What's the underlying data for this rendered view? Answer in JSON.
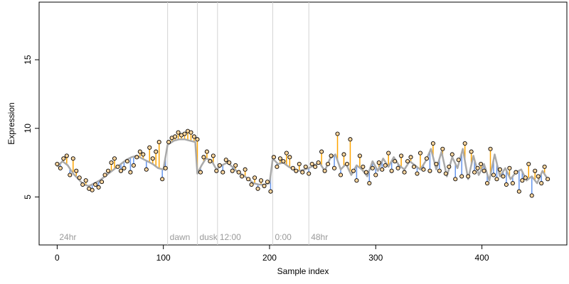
{
  "chart_data": {
    "type": "scatter",
    "title": "",
    "xlabel": "Sample index",
    "ylabel": "Expression",
    "xlim": [
      -17,
      480
    ],
    "ylim": [
      1.5,
      19.2
    ],
    "x_ticks": [
      0,
      100,
      200,
      300,
      400
    ],
    "y_ticks": [
      5,
      10,
      15
    ],
    "grid": false,
    "legend": "none",
    "colors": {
      "fit_line": "#a9a9a9",
      "above_segment": "#ffa500",
      "below_segment": "#6495ed",
      "point_fill": "#ffd7a0",
      "point_stroke": "#000000",
      "phase_line": "#d3d3d3"
    },
    "phase_markers": [
      {
        "x": 0,
        "label": "24hr"
      },
      {
        "x": 104,
        "label": "dawn"
      },
      {
        "x": 132,
        "label": "dusk"
      },
      {
        "x": 151,
        "label": "12:00"
      },
      {
        "x": 203,
        "label": "0:00"
      },
      {
        "x": 237,
        "label": "48hr"
      }
    ],
    "fit_line": {
      "x": [
        0,
        5,
        10,
        15,
        20,
        25,
        30,
        35,
        40,
        45,
        50,
        55,
        60,
        65,
        70,
        75,
        80,
        85,
        90,
        95,
        100,
        104,
        110,
        115,
        120,
        125,
        130,
        132,
        136,
        140,
        145,
        150,
        155,
        160,
        165,
        170,
        175,
        180,
        185,
        190,
        195,
        200,
        203,
        208,
        213,
        218,
        223,
        228,
        233,
        237,
        242,
        247,
        252,
        257,
        262,
        267,
        272,
        277,
        282,
        287,
        292,
        297,
        302,
        307,
        312,
        317,
        322,
        327,
        332,
        337,
        342,
        347,
        352,
        357,
        362,
        367,
        372,
        377,
        382,
        387,
        392,
        397,
        402,
        407,
        412,
        417,
        422,
        427,
        432,
        437,
        442,
        447,
        452,
        457,
        462
      ],
      "y": [
        7.2,
        7.6,
        7.3,
        6.7,
        6.3,
        5.9,
        5.8,
        6.0,
        6.2,
        6.5,
        6.8,
        7.1,
        7.4,
        7.7,
        7.9,
        8.0,
        7.8,
        7.6,
        7.4,
        7.1,
        7.0,
        8.8,
        9.1,
        9.2,
        9.2,
        9.1,
        9.0,
        6.7,
        7.3,
        7.8,
        7.7,
        7.0,
        7.3,
        7.5,
        7.2,
        6.8,
        6.6,
        6.3,
        6.0,
        5.9,
        5.9,
        6.0,
        7.8,
        7.4,
        7.5,
        7.2,
        7.0,
        6.9,
        7.0,
        7.1,
        7.3,
        7.5,
        6.9,
        7.8,
        8.1,
        7.0,
        7.4,
        6.6,
        7.3,
        7.0,
        6.5,
        7.6,
        6.9,
        7.8,
        7.2,
        7.9,
        7.3,
        7.0,
        7.6,
        7.3,
        7.0,
        7.6,
        8.5,
        7.0,
        8.3,
        6.5,
        7.9,
        7.1,
        8.5,
        6.3,
        8.0,
        6.6,
        7.4,
        6.2,
        8.1,
        6.5,
        7.1,
        6.3,
        6.8,
        7.0,
        6.2,
        6.5,
        6.0,
        6.9,
        6.3
      ]
    },
    "points": {
      "x": [
        0,
        3,
        6,
        9,
        12,
        15,
        18,
        21,
        24,
        27,
        30,
        33,
        36,
        39,
        42,
        45,
        48,
        51,
        54,
        57,
        60,
        63,
        66,
        69,
        72,
        75,
        78,
        81,
        84,
        87,
        90,
        93,
        96,
        99,
        102,
        105,
        108,
        111,
        114,
        117,
        120,
        123,
        126,
        129,
        132,
        135,
        138,
        141,
        144,
        147,
        150,
        153,
        156,
        159,
        162,
        165,
        168,
        171,
        174,
        177,
        180,
        183,
        186,
        189,
        192,
        195,
        198,
        201,
        204,
        207,
        210,
        213,
        216,
        219,
        222,
        225,
        228,
        231,
        234,
        237,
        240,
        243,
        246,
        249,
        252,
        255,
        258,
        261,
        264,
        267,
        270,
        273,
        276,
        279,
        282,
        285,
        288,
        291,
        294,
        297,
        300,
        303,
        306,
        309,
        312,
        315,
        318,
        321,
        324,
        327,
        330,
        333,
        336,
        339,
        342,
        345,
        348,
        351,
        354,
        357,
        360,
        363,
        366,
        369,
        372,
        375,
        378,
        381,
        384,
        387,
        390,
        393,
        396,
        399,
        402,
        405,
        408,
        411,
        414,
        417,
        420,
        423,
        426,
        429,
        432,
        435,
        438,
        441,
        444,
        447,
        450,
        453,
        456,
        459,
        462
      ],
      "y": [
        7.4,
        7.1,
        7.8,
        8.0,
        6.6,
        7.8,
        6.9,
        6.4,
        5.9,
        6.2,
        5.6,
        5.5,
        5.9,
        5.7,
        6.1,
        6.6,
        6.9,
        7.5,
        7.8,
        7.2,
        6.9,
        7.1,
        7.6,
        6.8,
        7.3,
        7.9,
        8.3,
        8.1,
        7.0,
        8.6,
        7.8,
        8.3,
        9.0,
        6.3,
        7.1,
        9.0,
        9.3,
        9.4,
        9.7,
        9.5,
        9.6,
        9.8,
        9.7,
        9.4,
        9.2,
        6.8,
        7.9,
        8.3,
        7.6,
        8.0,
        6.9,
        7.3,
        6.8,
        7.7,
        7.5,
        6.9,
        7.3,
        6.8,
        6.5,
        7.0,
        6.3,
        5.9,
        6.4,
        5.6,
        6.2,
        5.8,
        6.1,
        5.4,
        7.9,
        7.2,
        7.8,
        7.6,
        8.2,
        7.9,
        7.1,
        6.9,
        7.4,
        6.8,
        7.2,
        6.7,
        7.4,
        7.2,
        7.5,
        8.3,
        6.9,
        7.4,
        8.0,
        7.1,
        9.6,
        6.6,
        8.1,
        7.4,
        9.2,
        6.9,
        6.2,
        8.0,
        7.2,
        6.8,
        6.0,
        7.1,
        6.6,
        7.5,
        7.0,
        7.3,
        8.2,
        6.9,
        7.6,
        7.1,
        8.0,
        6.8,
        7.6,
        7.9,
        7.2,
        6.7,
        8.2,
        7.0,
        7.8,
        6.9,
        8.9,
        7.4,
        6.9,
        8.5,
        6.7,
        7.2,
        8.1,
        6.3,
        7.7,
        6.5,
        8.9,
        6.5,
        8.3,
        6.8,
        7.1,
        7.4,
        6.9,
        6.0,
        8.5,
        6.6,
        6.3,
        7.0,
        6.5,
        5.9,
        7.1,
        6.0,
        6.8,
        5.4,
        6.2,
        6.4,
        7.4,
        5.1,
        6.9,
        6.5,
        6.0,
        7.2,
        6.3
      ]
    }
  }
}
